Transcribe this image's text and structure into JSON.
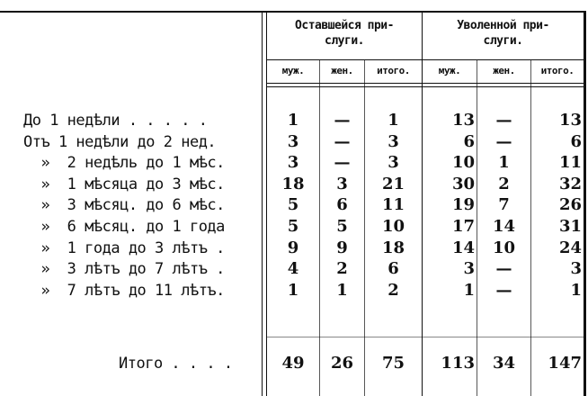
{
  "header": {
    "group_left": "Оставшейся при-\nслуги.",
    "group_right": "Уволенной при-\nслуги.",
    "subcolumns": [
      "муж.",
      "жен.",
      "итого.",
      "муж.",
      "жен.",
      "итого."
    ]
  },
  "rows": [
    {
      "label": "До 1 недѣли . . . . .",
      "values": [
        "1",
        "—",
        "1",
        "13",
        "—",
        "13"
      ]
    },
    {
      "label": "Отъ 1 недѣли до 2 нед.",
      "values": [
        "3",
        "—",
        "3",
        "6",
        "—",
        "6"
      ]
    },
    {
      "label": "  »  2 недѣль до 1 мѣс.",
      "values": [
        "3",
        "—",
        "3",
        "10",
        "1",
        "11"
      ]
    },
    {
      "label": "  »  1 мѣсяца до 3 мѣс.",
      "values": [
        "18",
        "3",
        "21",
        "30",
        "2",
        "32"
      ]
    },
    {
      "label": "  »  3 мѣсяц. до 6 мѣс.",
      "values": [
        "5",
        "6",
        "11",
        "19",
        "7",
        "26"
      ]
    },
    {
      "label": "  »  6 мѣсяц. до 1 года",
      "values": [
        "5",
        "5",
        "10",
        "17",
        "14",
        "31"
      ]
    },
    {
      "label": "  »  1 года до 3 лѣтъ .",
      "values": [
        "9",
        "9",
        "18",
        "14",
        "10",
        "24"
      ]
    },
    {
      "label": "  »  3 лѣтъ до 7 лѣтъ .",
      "values": [
        "4",
        "2",
        "6",
        "3",
        "—",
        "3"
      ]
    },
    {
      "label": "  »  7 лѣтъ до 11 лѣтъ.",
      "values": [
        "1",
        "1",
        "2",
        "1",
        "—",
        "1"
      ]
    }
  ],
  "total": {
    "label": "Итого . . . .",
    "values": [
      "49",
      "26",
      "75",
      "113",
      "34",
      "147"
    ]
  }
}
